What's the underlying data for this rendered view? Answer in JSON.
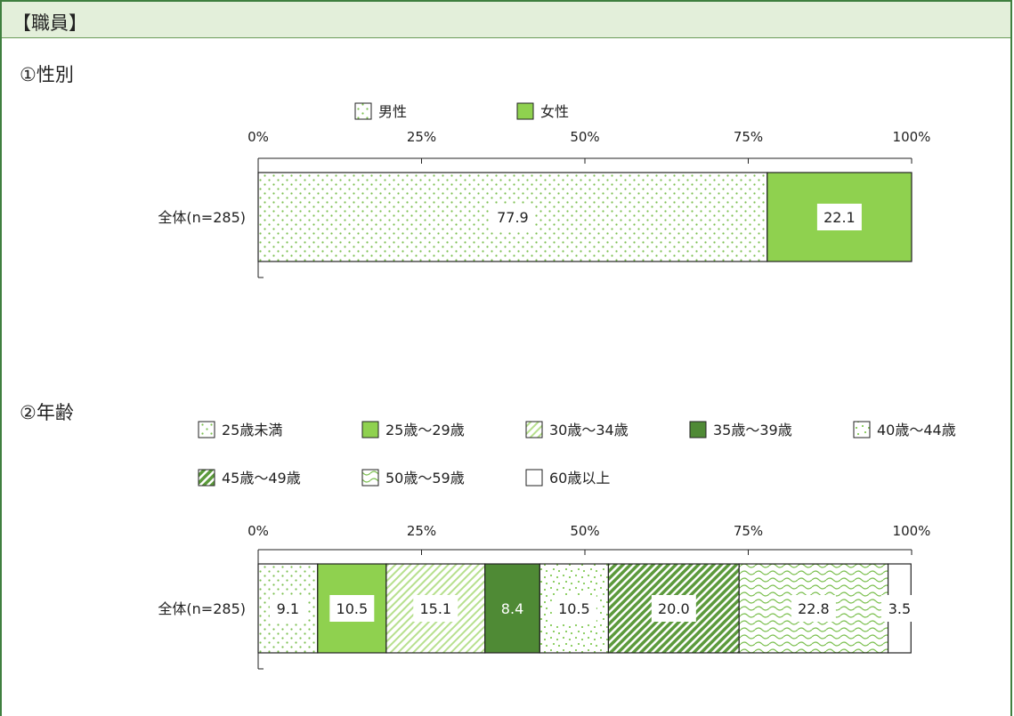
{
  "header": {
    "title": "【職員】"
  },
  "sections": [
    {
      "title": "①性別"
    },
    {
      "title": "②年齢"
    }
  ],
  "colors": {
    "light_green": "#8fd14f",
    "dark_green": "#4f8a35",
    "pattern_green": "#8fcf66",
    "border": "#222222"
  },
  "chart_data": [
    {
      "type": "bar",
      "orientation": "horizontal-stacked-100",
      "categories": [
        "全体(n=285)"
      ],
      "series": [
        {
          "name": "男性",
          "values": [
            77.9
          ],
          "label": "77.9",
          "pattern": "dots"
        },
        {
          "name": "女性",
          "values": [
            22.1
          ],
          "label": "22.1",
          "pattern": "solid-light"
        }
      ],
      "x_ticks": [
        "0%",
        "25%",
        "50%",
        "75%",
        "100%"
      ],
      "xlim": [
        0,
        100
      ],
      "legend_position": "top"
    },
    {
      "type": "bar",
      "orientation": "horizontal-stacked-100",
      "categories": [
        "全体(n=285)"
      ],
      "series": [
        {
          "name": "25歳未満",
          "values": [
            9.1
          ],
          "label": "9.1",
          "pattern": "dots"
        },
        {
          "name": "25歳～29歳",
          "values": [
            10.5
          ],
          "label": "10.5",
          "pattern": "solid-light"
        },
        {
          "name": "30歳～34歳",
          "values": [
            15.1
          ],
          "label": "15.1",
          "pattern": "light-diagonal"
        },
        {
          "name": "35歳～39歳",
          "values": [
            8.4
          ],
          "label": "8.4",
          "pattern": "solid-dark"
        },
        {
          "name": "40歳～44歳",
          "values": [
            10.5
          ],
          "label": "10.5",
          "pattern": "confetti"
        },
        {
          "name": "45歳～49歳",
          "values": [
            20.0
          ],
          "label": "20.0",
          "pattern": "dark-diagonal"
        },
        {
          "name": "50歳～59歳",
          "values": [
            22.8
          ],
          "label": "22.8",
          "pattern": "wave"
        },
        {
          "name": "60歳以上",
          "values": [
            3.5
          ],
          "label": "3.5",
          "pattern": "white"
        }
      ],
      "x_ticks": [
        "0%",
        "25%",
        "50%",
        "75%",
        "100%"
      ],
      "xlim": [
        0,
        100
      ],
      "legend_position": "top"
    }
  ]
}
